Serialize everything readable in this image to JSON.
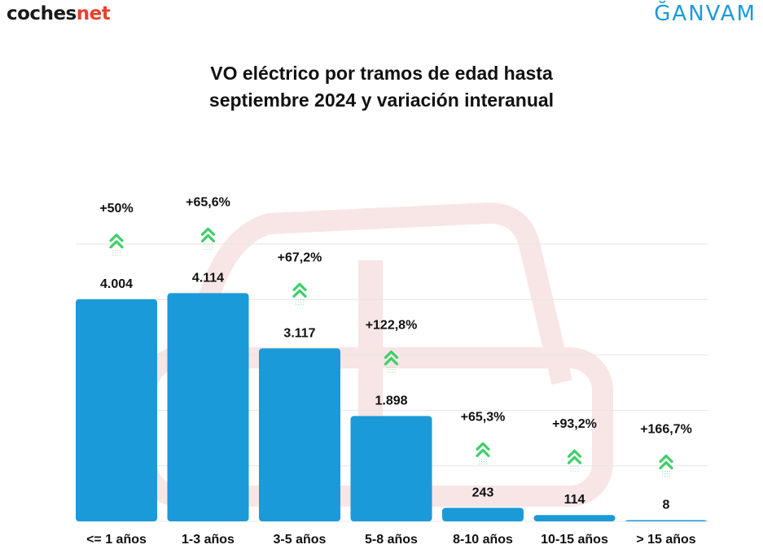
{
  "header": {
    "logo_left_main": "coches",
    "logo_left_accent": "net",
    "logo_right": "ĞANVAM"
  },
  "chart_data": {
    "type": "bar",
    "title_line1": "VO eléctrico por tramos de edad hasta",
    "title_line2": "septiembre 2024 y variación interanual",
    "categories": [
      "<= 1 años",
      "1-3 años",
      "3-5 años",
      "5-8 años",
      "8-10 años",
      "10-15 años",
      "> 15 años"
    ],
    "values": [
      4004,
      4114,
      3117,
      1898,
      243,
      114,
      8
    ],
    "value_labels": [
      "4.004",
      "4.114",
      "3.117",
      "1.898",
      "243",
      "114",
      "8"
    ],
    "variation_labels": [
      "+50%",
      "+65,6%",
      "+67,2%",
      "+122,8%",
      "+65,3%",
      "+93,2%",
      "+166,7%"
    ],
    "ylim": [
      0,
      5000
    ],
    "grid": true,
    "colors": {
      "bar": "#1a9ad8",
      "arrow": "#3ecf6a",
      "grid": "#e6e6e6",
      "watermark": "#f3d1d1"
    },
    "icons": {
      "variation": "double-chevron-up-icon"
    }
  }
}
